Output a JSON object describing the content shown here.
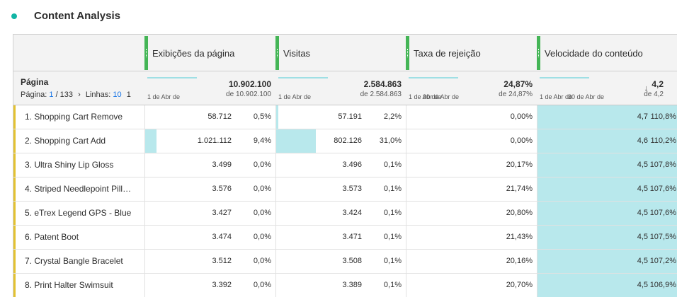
{
  "panel": {
    "title": "Content Analysis"
  },
  "dimension": {
    "title": "Página",
    "pager_label": "Página:",
    "page": "1",
    "page_total": "/ 133",
    "rows_label": "Linhas:",
    "rows_value": "10",
    "trailing": "1"
  },
  "columns": [
    {
      "label": "Exibições da página",
      "total": "10.902.100",
      "of_total": "de 10.902.100",
      "date_label": "1 de Abr de"
    },
    {
      "label": "Visitas",
      "total": "2.584.863",
      "of_total": "de 2.584.863",
      "date_label": "1 de Abr de"
    },
    {
      "label": "Taxa de rejeição",
      "total": "24,87%",
      "of_total": "de 24,87%",
      "date_label": "1 de Abr de",
      "date_label_2": "30 de Abr de"
    },
    {
      "label": "Velocidade do conteúdo",
      "total": "4,2",
      "of_total": "de 4,2",
      "date_label": "1 de Abr de",
      "date_label_2": "30 de Abr de"
    }
  ],
  "rows": [
    {
      "name": "1. Shopping Cart Remove",
      "pv": "58.712",
      "pv_pct": "0,5%",
      "pv_share": 0.005,
      "visits": "57.191",
      "visits_pct": "2,2%",
      "visits_share": 0.022,
      "bounce": "0,00%",
      "vel": "4,7",
      "vel_pct": "110,8%"
    },
    {
      "name": "2. Shopping Cart Add",
      "pv": "1.021.112",
      "pv_pct": "9,4%",
      "pv_share": 0.094,
      "visits": "802.126",
      "visits_pct": "31,0%",
      "visits_share": 0.31,
      "bounce": "0,00%",
      "vel": "4,6",
      "vel_pct": "110,2%"
    },
    {
      "name": "3. Ultra Shiny Lip Gloss",
      "pv": "3.499",
      "pv_pct": "0,0%",
      "pv_share": 0,
      "visits": "3.496",
      "visits_pct": "0,1%",
      "visits_share": 0.001,
      "bounce": "20,17%",
      "vel": "4,5",
      "vel_pct": "107,8%"
    },
    {
      "name": "4. Striped Needlepoint Pill…",
      "pv": "3.576",
      "pv_pct": "0,0%",
      "pv_share": 0,
      "visits": "3.573",
      "visits_pct": "0,1%",
      "visits_share": 0.001,
      "bounce": "21,74%",
      "vel": "4,5",
      "vel_pct": "107,6%"
    },
    {
      "name": "5. eTrex Legend GPS - Blue",
      "pv": "3.427",
      "pv_pct": "0,0%",
      "pv_share": 0,
      "visits": "3.424",
      "visits_pct": "0,1%",
      "visits_share": 0.001,
      "bounce": "20,80%",
      "vel": "4,5",
      "vel_pct": "107,6%"
    },
    {
      "name": "6. Patent Boot",
      "pv": "3.474",
      "pv_pct": "0,0%",
      "pv_share": 0,
      "visits": "3.471",
      "visits_pct": "0,1%",
      "visits_share": 0.001,
      "bounce": "21,43%",
      "vel": "4,5",
      "vel_pct": "107,5%"
    },
    {
      "name": "7. Crystal Bangle Bracelet",
      "pv": "3.512",
      "pv_pct": "0,0%",
      "pv_share": 0,
      "visits": "3.508",
      "visits_pct": "0,1%",
      "visits_share": 0.001,
      "bounce": "20,16%",
      "vel": "4,5",
      "vel_pct": "107,2%"
    },
    {
      "name": "8. Print Halter Swimsuit",
      "pv": "3.392",
      "pv_pct": "0,0%",
      "pv_share": 0,
      "visits": "3.389",
      "visits_pct": "0,1%",
      "visits_share": 0.001,
      "bounce": "20,70%",
      "vel": "4,5",
      "vel_pct": "106,9%"
    }
  ],
  "colors": {
    "accent_dot": "#12b5a5",
    "metric_grip": "#44b556",
    "row_marker": "#e4c230",
    "bar_fill": "#b8e8ec",
    "link": "#1473e6"
  },
  "icons": {
    "sort": "arrow-down-icon",
    "pager_next": "chevron-right-icon"
  }
}
